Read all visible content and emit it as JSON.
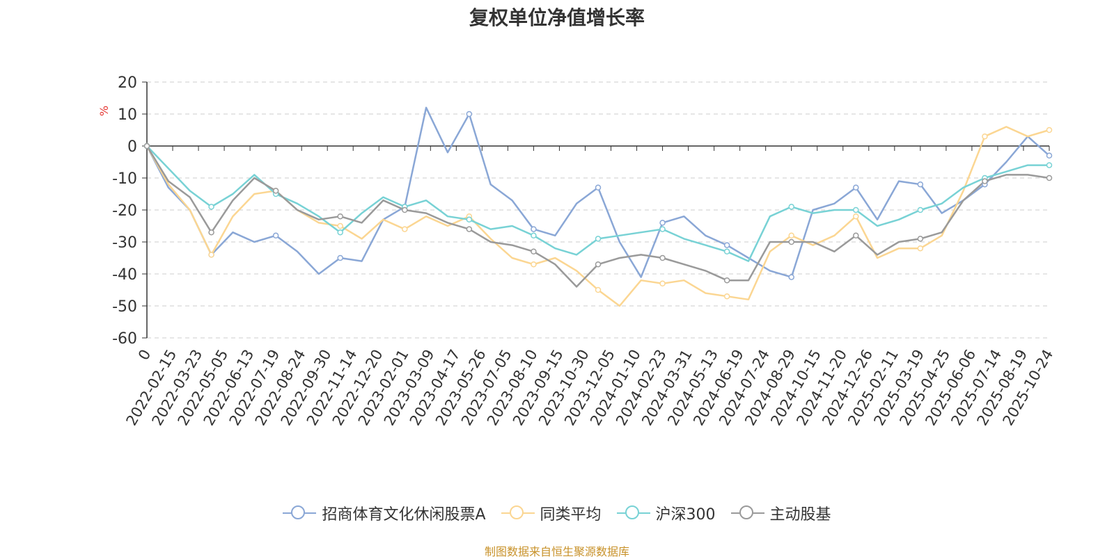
{
  "chart_data": {
    "type": "line",
    "title": "复权单位净值增长率",
    "ylabel": "%",
    "ylim": [
      -60,
      20
    ],
    "yticks": [
      20,
      10,
      0,
      -10,
      -20,
      -30,
      -40,
      -50,
      -60
    ],
    "grid": true,
    "legend_position": "bottom-center",
    "x_tick_labels": [
      "0",
      "2022-02-15",
      "2022-03-23",
      "2022-05-05",
      "2022-06-13",
      "2022-07-19",
      "2022-08-24",
      "2022-09-30",
      "2022-11-14",
      "2022-12-20",
      "2023-02-01",
      "2023-03-09",
      "2023-04-17",
      "2023-05-26",
      "2023-07-05",
      "2023-08-10",
      "2023-09-15",
      "2023-10-30",
      "2023-12-05",
      "2024-01-10",
      "2024-02-23",
      "2024-03-31",
      "2024-05-13",
      "2024-06-19",
      "2024-07-24",
      "2024-08-29",
      "2024-10-15",
      "2024-11-20",
      "2024-12-26",
      "2025-02-11",
      "2025-03-19",
      "2025-04-25",
      "2025-06-06",
      "2025-07-14",
      "2025-08-19",
      "2025-10-24"
    ],
    "series": [
      {
        "name": "招商体育文化休闲股票A",
        "color": "#8aa7d6",
        "values": [
          0,
          -13,
          -20,
          -34,
          -27,
          -30,
          -28,
          -33,
          -40,
          -35,
          -36,
          -23,
          -19,
          12,
          -2,
          10,
          -12,
          -17,
          -26,
          -28,
          -18,
          -13,
          -30,
          -41,
          -24,
          -22,
          -28,
          -31,
          -35,
          -39,
          -41,
          -20,
          -18,
          -13,
          -23,
          -11,
          -12,
          -21,
          -17,
          -12,
          -5,
          3,
          -3
        ]
      },
      {
        "name": "同类平均",
        "color": "#fbd692",
        "values": [
          0,
          -12,
          -20,
          -34,
          -22,
          -15,
          -14,
          -20,
          -24,
          -25,
          -29,
          -23,
          -26,
          -22,
          -25,
          -22,
          -29,
          -35,
          -37,
          -35,
          -39,
          -45,
          -50,
          -42,
          -43,
          -42,
          -46,
          -47,
          -48,
          -33,
          -28,
          -31,
          -28,
          -22,
          -35,
          -32,
          -32,
          -28,
          -14,
          3,
          6,
          3,
          5
        ]
      },
      {
        "name": "沪深300",
        "color": "#78d2d5",
        "values": [
          0,
          -7,
          -14,
          -19,
          -15,
          -9,
          -15,
          -18,
          -22,
          -27,
          -21,
          -16,
          -19,
          -17,
          -22,
          -23,
          -26,
          -25,
          -28,
          -32,
          -34,
          -29,
          -28,
          -27,
          -26,
          -29,
          -31,
          -33,
          -36,
          -22,
          -19,
          -21,
          -20,
          -20,
          -25,
          -23,
          -20,
          -18,
          -13,
          -10,
          -8,
          -6,
          -6
        ]
      },
      {
        "name": "主动股基",
        "color": "#9a9a9a",
        "values": [
          0,
          -11,
          -16,
          -27,
          -17,
          -10,
          -14,
          -20,
          -23,
          -22,
          -24,
          -17,
          -20,
          -21,
          -24,
          -26,
          -30,
          -31,
          -33,
          -37,
          -44,
          -37,
          -35,
          -34,
          -35,
          -37,
          -39,
          -42,
          -42,
          -30,
          -30,
          -30,
          -33,
          -28,
          -34,
          -30,
          -29,
          -27,
          -17,
          -11,
          -9,
          -9,
          -10
        ]
      }
    ]
  },
  "source_text": "制图数据来自恒生聚源数据库"
}
